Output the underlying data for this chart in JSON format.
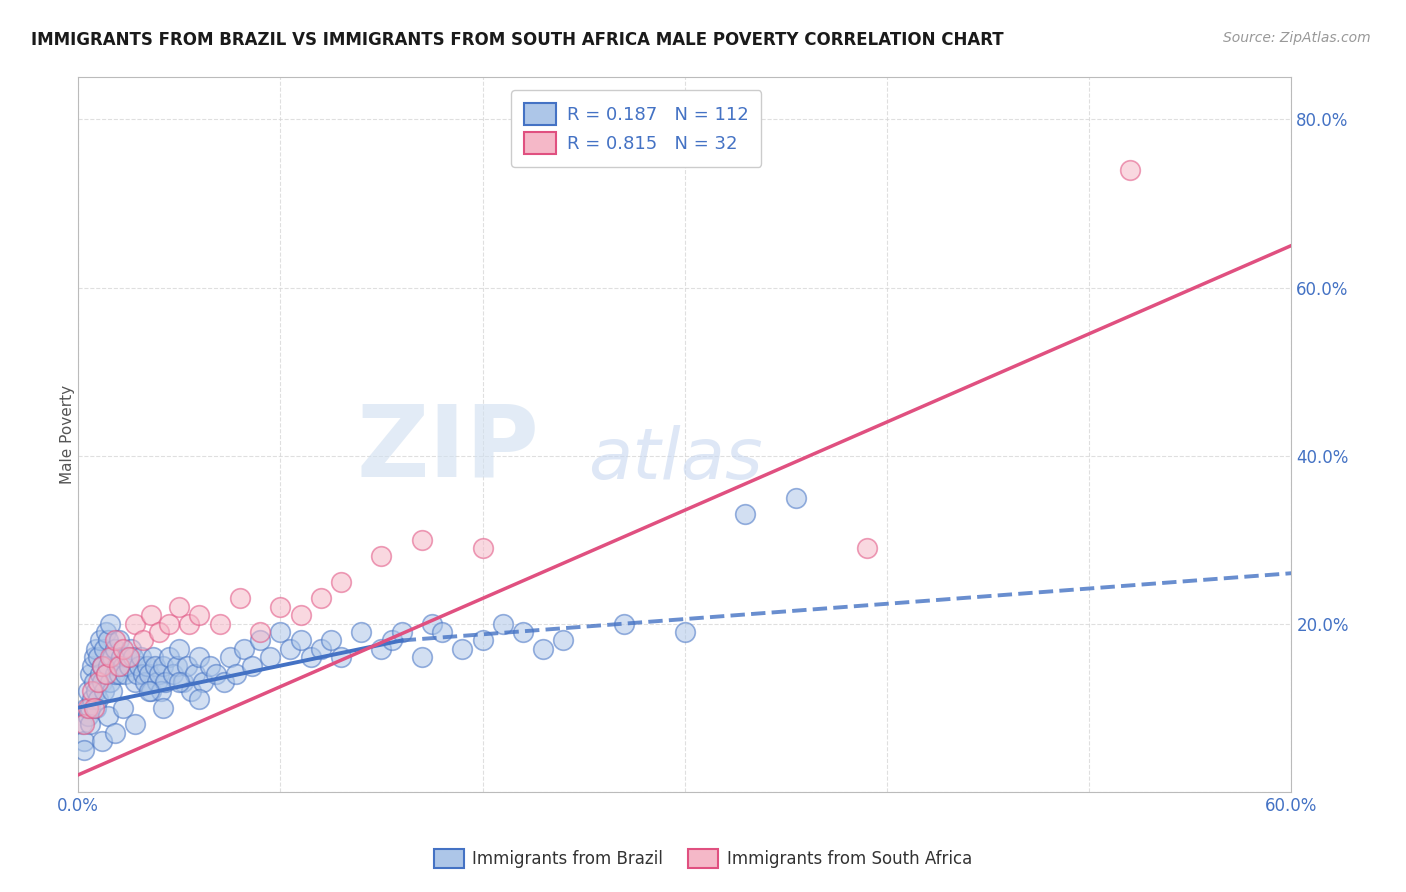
{
  "title": "IMMIGRANTS FROM BRAZIL VS IMMIGRANTS FROM SOUTH AFRICA MALE POVERTY CORRELATION CHART",
  "source": "Source: ZipAtlas.com",
  "xlabel": "",
  "ylabel": "Male Poverty",
  "xlim": [
    0.0,
    0.6
  ],
  "ylim": [
    0.0,
    0.85
  ],
  "xticks": [
    0.0,
    0.1,
    0.2,
    0.3,
    0.4,
    0.5,
    0.6
  ],
  "xticklabels": [
    "0.0%",
    "",
    "",
    "",
    "",
    "",
    "60.0%"
  ],
  "ytick_positions": [
    0.0,
    0.2,
    0.4,
    0.6,
    0.8
  ],
  "yticklabels": [
    "",
    "20.0%",
    "40.0%",
    "60.0%",
    "80.0%"
  ],
  "brazil_R": 0.187,
  "brazil_N": 112,
  "sa_R": 0.815,
  "sa_N": 32,
  "brazil_color": "#adc6e8",
  "sa_color": "#f5b8c8",
  "brazil_line_color": "#4472c4",
  "sa_line_color": "#e05080",
  "brazil_scatter_x": [
    0.002,
    0.003,
    0.004,
    0.005,
    0.005,
    0.006,
    0.006,
    0.007,
    0.007,
    0.008,
    0.008,
    0.009,
    0.009,
    0.01,
    0.01,
    0.011,
    0.011,
    0.012,
    0.012,
    0.013,
    0.013,
    0.014,
    0.014,
    0.015,
    0.015,
    0.016,
    0.016,
    0.017,
    0.017,
    0.018,
    0.018,
    0.019,
    0.02,
    0.02,
    0.021,
    0.022,
    0.023,
    0.024,
    0.025,
    0.026,
    0.027,
    0.028,
    0.029,
    0.03,
    0.031,
    0.032,
    0.033,
    0.034,
    0.035,
    0.036,
    0.037,
    0.038,
    0.039,
    0.04,
    0.041,
    0.042,
    0.043,
    0.045,
    0.047,
    0.049,
    0.05,
    0.052,
    0.054,
    0.056,
    0.058,
    0.06,
    0.062,
    0.065,
    0.068,
    0.072,
    0.075,
    0.078,
    0.082,
    0.086,
    0.09,
    0.095,
    0.1,
    0.105,
    0.11,
    0.115,
    0.12,
    0.125,
    0.13,
    0.14,
    0.15,
    0.155,
    0.16,
    0.17,
    0.175,
    0.18,
    0.19,
    0.2,
    0.21,
    0.22,
    0.23,
    0.24,
    0.27,
    0.3,
    0.33,
    0.355,
    0.003,
    0.006,
    0.009,
    0.012,
    0.015,
    0.018,
    0.022,
    0.028,
    0.035,
    0.042,
    0.05,
    0.06
  ],
  "brazil_scatter_y": [
    0.08,
    0.06,
    0.1,
    0.09,
    0.12,
    0.1,
    0.14,
    0.11,
    0.15,
    0.13,
    0.16,
    0.12,
    0.17,
    0.11,
    0.16,
    0.14,
    0.18,
    0.13,
    0.15,
    0.12,
    0.17,
    0.14,
    0.19,
    0.15,
    0.18,
    0.13,
    0.2,
    0.16,
    0.12,
    0.14,
    0.17,
    0.15,
    0.14,
    0.18,
    0.16,
    0.15,
    0.14,
    0.16,
    0.15,
    0.17,
    0.16,
    0.13,
    0.14,
    0.15,
    0.16,
    0.14,
    0.13,
    0.15,
    0.14,
    0.12,
    0.16,
    0.15,
    0.13,
    0.14,
    0.12,
    0.15,
    0.13,
    0.16,
    0.14,
    0.15,
    0.17,
    0.13,
    0.15,
    0.12,
    0.14,
    0.16,
    0.13,
    0.15,
    0.14,
    0.13,
    0.16,
    0.14,
    0.17,
    0.15,
    0.18,
    0.16,
    0.19,
    0.17,
    0.18,
    0.16,
    0.17,
    0.18,
    0.16,
    0.19,
    0.17,
    0.18,
    0.19,
    0.16,
    0.2,
    0.19,
    0.17,
    0.18,
    0.2,
    0.19,
    0.17,
    0.18,
    0.2,
    0.19,
    0.33,
    0.35,
    0.05,
    0.08,
    0.1,
    0.06,
    0.09,
    0.07,
    0.1,
    0.08,
    0.12,
    0.1,
    0.13,
    0.11
  ],
  "sa_scatter_x": [
    0.003,
    0.005,
    0.007,
    0.008,
    0.01,
    0.012,
    0.014,
    0.016,
    0.018,
    0.02,
    0.022,
    0.025,
    0.028,
    0.032,
    0.036,
    0.04,
    0.045,
    0.05,
    0.055,
    0.06,
    0.07,
    0.08,
    0.09,
    0.1,
    0.11,
    0.12,
    0.13,
    0.15,
    0.17,
    0.2,
    0.39,
    0.52
  ],
  "sa_scatter_y": [
    0.08,
    0.1,
    0.12,
    0.1,
    0.13,
    0.15,
    0.14,
    0.16,
    0.18,
    0.15,
    0.17,
    0.16,
    0.2,
    0.18,
    0.21,
    0.19,
    0.2,
    0.22,
    0.2,
    0.21,
    0.2,
    0.23,
    0.19,
    0.22,
    0.21,
    0.23,
    0.25,
    0.28,
    0.3,
    0.29,
    0.29,
    0.74
  ],
  "brazil_line_solid": {
    "x0": 0.0,
    "x1": 0.16,
    "y0": 0.1,
    "y1": 0.18
  },
  "brazil_line_dashed": {
    "x0": 0.16,
    "x1": 0.6,
    "y0": 0.18,
    "y1": 0.26
  },
  "sa_line": {
    "x0": 0.0,
    "x1": 0.6,
    "y0": 0.02,
    "y1": 0.65
  },
  "watermark_ZIP": "ZIP",
  "watermark_atlas": "atlas",
  "background_color": "#ffffff",
  "grid_color": "#d8d8d8",
  "title_color": "#1a1a1a",
  "axis_label_color": "#555555",
  "tick_label_color": "#4472c4",
  "legend_text_color": "#4472c4"
}
